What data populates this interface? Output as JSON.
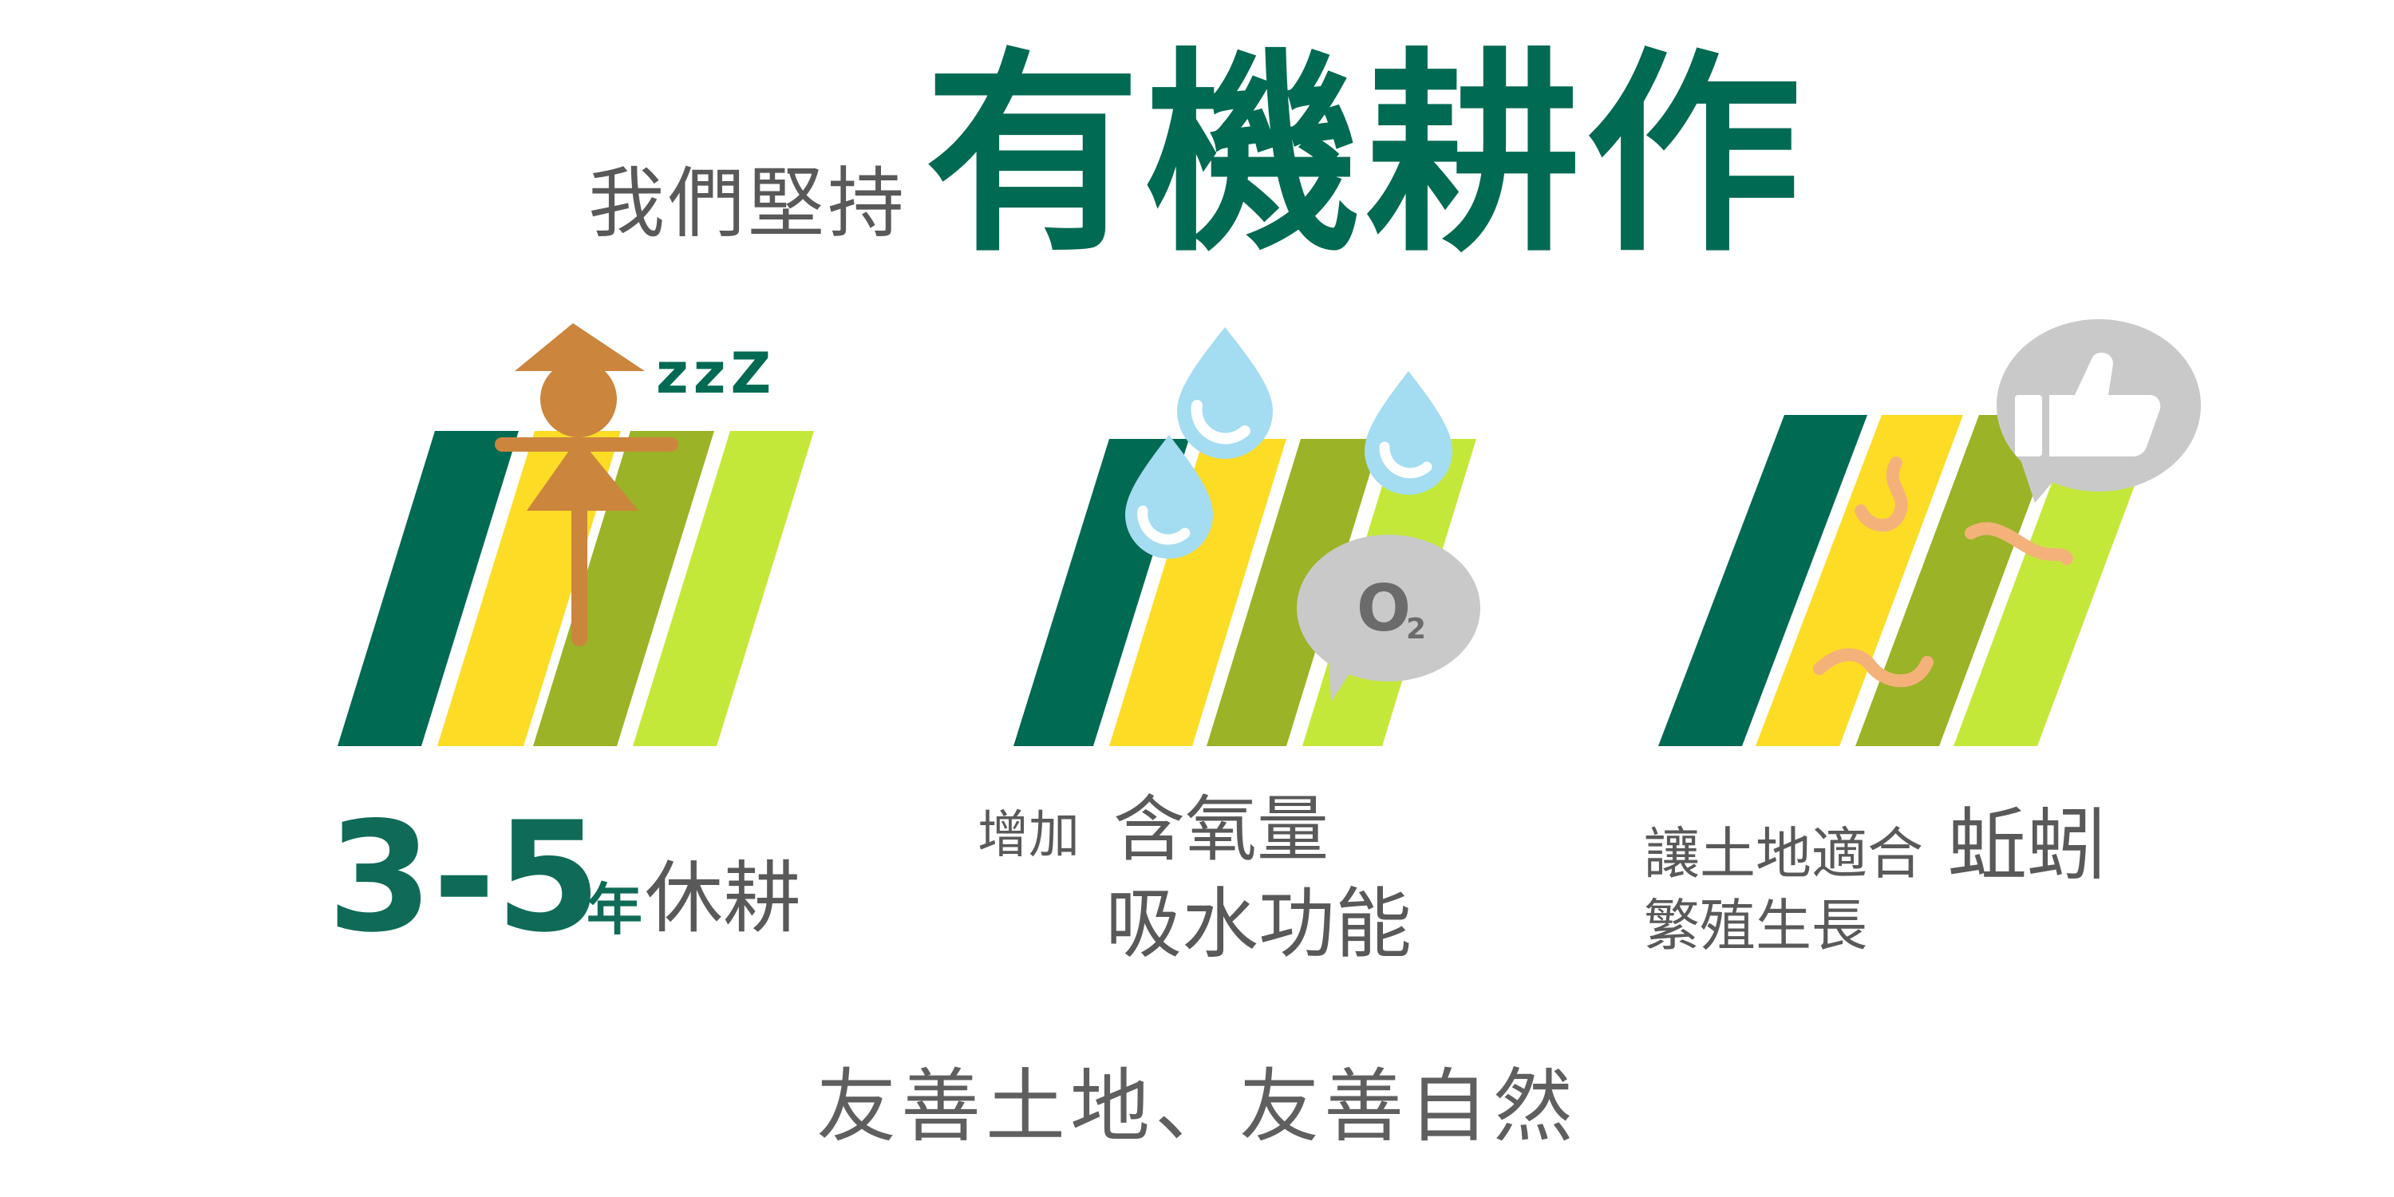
{
  "title": {
    "prefix": "我們堅持",
    "main": "有機耕作"
  },
  "panels": [
    {
      "icon": "scarecrow-icon",
      "sleep_text": "zzZ",
      "caption_number": "3-5",
      "caption_unit": "年",
      "caption_text": "休耕"
    },
    {
      "icon": "water-drop-icon",
      "bubble_text": "O",
      "bubble_sub": "2",
      "caption_line1_small": "增加",
      "caption_line1_big": "含氧量",
      "caption_line2": "吸水功能"
    },
    {
      "icon": "thumbs-up-icon",
      "caption_line1_small": "讓土地適合",
      "caption_line1_big": "蚯蚓",
      "caption_line2": "繁殖生長"
    }
  ],
  "footer": "友善土地、友善自然",
  "colors": {
    "dark_green": "#006a52",
    "yellow": "#fddc26",
    "olive": "#9bb326",
    "lime": "#c4e83a",
    "scarecrow": "#cc853d",
    "water": "#a4dcf1",
    "bubble": "#c9c9c9",
    "worm": "#f4b27a",
    "text_gray": "#595959"
  }
}
